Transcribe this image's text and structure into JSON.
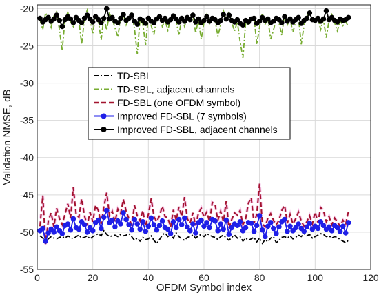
{
  "chart_data": {
    "type": "line",
    "xlabel": "OFDM Symbol index",
    "ylabel": "Validation NMSE, dB",
    "xlim": [
      0,
      120
    ],
    "ylim": [
      -55,
      -19.5
    ],
    "xticks": [
      0,
      20,
      40,
      60,
      80,
      100,
      120
    ],
    "yticks": [
      -55,
      -50,
      -45,
      -40,
      -35,
      -30,
      -25,
      -20
    ],
    "grid": true,
    "legend_position": "upper-center",
    "series": [
      {
        "name": "TD-SBL",
        "color": "#000000",
        "style": "dashdot",
        "x": [
          1,
          2,
          3,
          4,
          5,
          6,
          7,
          8,
          9,
          10,
          11,
          12,
          13,
          14,
          15,
          16,
          17,
          18,
          19,
          20,
          21,
          22,
          23,
          24,
          25,
          26,
          27,
          28,
          29,
          30,
          31,
          32,
          33,
          34,
          35,
          36,
          37,
          38,
          39,
          40,
          41,
          42,
          43,
          44,
          45,
          46,
          47,
          48,
          49,
          50,
          51,
          52,
          53,
          54,
          55,
          56,
          57,
          58,
          59,
          60,
          61,
          62,
          63,
          64,
          65,
          66,
          67,
          68,
          69,
          70,
          71,
          72,
          73,
          74,
          75,
          76,
          77,
          78,
          79,
          80,
          81,
          82,
          83,
          84,
          85,
          86,
          87,
          88,
          89,
          90,
          91,
          92,
          93,
          94,
          95,
          96,
          97,
          98,
          99,
          100,
          101,
          102,
          103,
          104,
          105,
          106,
          107,
          108,
          109,
          110,
          111,
          112
        ],
        "values": [
          -50.5,
          -50.8,
          -51.2,
          -50.9,
          -50.6,
          -50.8,
          -50.9,
          -50.7,
          -50.6,
          -50.8,
          -50.5,
          -50.7,
          -50.9,
          -50.6,
          -50.4,
          -50.8,
          -50.7,
          -50.5,
          -50.9,
          -50.6,
          -50.4,
          -50.2,
          -50.5,
          -49.8,
          -50.3,
          -50.6,
          -50.5,
          -50.4,
          -50.6,
          -50.3,
          -50.5,
          -50.4,
          -50.2,
          -50.6,
          -51.1,
          -50.8,
          -51.2,
          -50.7,
          -51.0,
          -50.9,
          -50.5,
          -51.1,
          -51.5,
          -51.0,
          -50.4,
          -50.1,
          -50.6,
          -50.3,
          -50.8,
          -50.1,
          -50.6,
          -50.9,
          -51.1,
          -50.7,
          -50.6,
          -50.4,
          -50.8,
          -50.5,
          -50.3,
          -50.6,
          -50.2,
          -50.4,
          -50.6,
          -50.7,
          -51.0,
          -50.6,
          -50.4,
          -50.8,
          -51.1,
          -50.7,
          -50.4,
          -50.8,
          -50.6,
          -51.2,
          -50.8,
          -51.1,
          -50.9,
          -50.7,
          -51.3,
          -50.8,
          -51.5,
          -51.0,
          -51.3,
          -50.8,
          -50.6,
          -51.4,
          -51.1,
          -50.7,
          -50.6,
          -50.8,
          -50.5,
          -50.9,
          -50.7,
          -50.4,
          -50.6,
          -50.2,
          -50.5,
          -50.3,
          -50.8,
          -50.6,
          -50.4,
          -50.2,
          -50.3,
          -50.6,
          -50.5,
          -50.8,
          -50.6,
          -50.7,
          -51.0,
          -51.2,
          -51.4,
          -51.1
        ]
      },
      {
        "name": "TD-SBL, adjacent channels",
        "color": "#77AC30",
        "style": "dashdot",
        "x": [
          1,
          2,
          3,
          4,
          5,
          6,
          7,
          8,
          9,
          10,
          11,
          12,
          13,
          14,
          15,
          16,
          17,
          18,
          19,
          20,
          21,
          22,
          23,
          24,
          25,
          26,
          27,
          28,
          29,
          30,
          31,
          32,
          33,
          34,
          35,
          36,
          37,
          38,
          39,
          40,
          41,
          42,
          43,
          44,
          45,
          46,
          47,
          48,
          49,
          50,
          51,
          52,
          53,
          54,
          55,
          56,
          57,
          58,
          59,
          60,
          61,
          62,
          63,
          64,
          65,
          66,
          67,
          68,
          69,
          70,
          71,
          72,
          73,
          74,
          75,
          76,
          77,
          78,
          79,
          80,
          81,
          82,
          83,
          84,
          85,
          86,
          87,
          88,
          89,
          90,
          91,
          92,
          93,
          94,
          95,
          96,
          97,
          98,
          99,
          100,
          101,
          102,
          103,
          104,
          105,
          106,
          107,
          108,
          109,
          110,
          111,
          112
        ],
        "values": [
          -21.5,
          -22.8,
          -20.6,
          -21.2,
          -22.5,
          -21.0,
          -20.4,
          -22.9,
          -25.6,
          -21.5,
          -20.5,
          -21.8,
          -22.4,
          -20.8,
          -21.6,
          -24.8,
          -21.3,
          -20.2,
          -21.5,
          -23.4,
          -20.8,
          -21.7,
          -24.2,
          -21.1,
          -22.9,
          -20.7,
          -21.4,
          -22.6,
          -23.8,
          -21.3,
          -20.7,
          -22.2,
          -21.4,
          -20.6,
          -22.7,
          -26.1,
          -21.4,
          -22.1,
          -24.9,
          -21.0,
          -22.3,
          -23.5,
          -21.2,
          -20.9,
          -22.4,
          -21.6,
          -22.9,
          -21.3,
          -20.8,
          -21.7,
          -23.6,
          -21.2,
          -22.4,
          -21.0,
          -21.8,
          -20.7,
          -23.3,
          -21.5,
          -24.1,
          -21.9,
          -20.8,
          -22.0,
          -21.2,
          -21.6,
          -23.7,
          -22.2,
          -20.3,
          -21.4,
          -20.5,
          -21.9,
          -23.0,
          -21.8,
          -24.4,
          -26.6,
          -21.9,
          -22.2,
          -21.3,
          -21.1,
          -24.8,
          -22.5,
          -20.6,
          -22.1,
          -21.5,
          -24.1,
          -22.9,
          -21.4,
          -21.9,
          -23.6,
          -20.7,
          -22.2,
          -21.4,
          -23.2,
          -21.7,
          -21.2,
          -24.8,
          -22.3,
          -21.0,
          -20.4,
          -21.6,
          -21.9,
          -21.3,
          -22.8,
          -21.5,
          -23.9,
          -21.6,
          -20.8,
          -21.9,
          -23.0,
          -21.6,
          -22.3,
          -21.8,
          -22.4
        ]
      },
      {
        "name": "FD-SBL (one OFDM symbol)",
        "color": "#A2142F",
        "style": "dashed",
        "x": [
          1,
          2,
          3,
          4,
          5,
          6,
          7,
          8,
          9,
          10,
          11,
          12,
          13,
          14,
          15,
          16,
          17,
          18,
          19,
          20,
          21,
          22,
          23,
          24,
          25,
          26,
          27,
          28,
          29,
          30,
          31,
          32,
          33,
          34,
          35,
          36,
          37,
          38,
          39,
          40,
          41,
          42,
          43,
          44,
          45,
          46,
          47,
          48,
          49,
          50,
          51,
          52,
          53,
          54,
          55,
          56,
          57,
          58,
          59,
          60,
          61,
          62,
          63,
          64,
          65,
          66,
          67,
          68,
          69,
          70,
          71,
          72,
          73,
          74,
          75,
          76,
          77,
          78,
          79,
          80,
          81,
          82,
          83,
          84,
          85,
          86,
          87,
          88,
          89,
          90,
          91,
          92,
          93,
          94,
          95,
          96,
          97,
          98,
          99,
          100,
          101,
          102,
          103,
          104,
          105,
          106,
          107,
          108,
          109,
          110,
          111,
          112
        ],
        "values": [
          -49.2,
          -45.1,
          -51.6,
          -48.5,
          -47.4,
          -49.3,
          -46.8,
          -48.2,
          -49.0,
          -47.6,
          -46.2,
          -48.1,
          -44.0,
          -47.6,
          -48.0,
          -45.5,
          -47.8,
          -49.1,
          -47.3,
          -48.6,
          -46.4,
          -47.1,
          -48.9,
          -46.6,
          -44.7,
          -47.8,
          -47.2,
          -48.6,
          -46.9,
          -47.5,
          -45.6,
          -47.2,
          -48.2,
          -49.0,
          -46.4,
          -47.8,
          -48.5,
          -47.1,
          -49.2,
          -47.6,
          -45.5,
          -47.9,
          -48.6,
          -47.8,
          -46.5,
          -47.9,
          -48.1,
          -49.3,
          -47.0,
          -48.4,
          -46.6,
          -47.9,
          -45.3,
          -48.2,
          -48.8,
          -47.4,
          -49.1,
          -47.5,
          -46.8,
          -48.0,
          -47.3,
          -48.6,
          -46.0,
          -46.3,
          -48.4,
          -47.2,
          -48.6,
          -45.8,
          -49.4,
          -48.3,
          -47.4,
          -47.7,
          -47.1,
          -49.0,
          -48.2,
          -46.1,
          -45.4,
          -48.8,
          -47.6,
          -43.5,
          -48.9,
          -49.3,
          -48.1,
          -47.5,
          -48.4,
          -49.0,
          -48.4,
          -47.1,
          -46.4,
          -48.8,
          -47.6,
          -48.9,
          -48.2,
          -47.3,
          -48.5,
          -49.2,
          -48.6,
          -47.8,
          -48.9,
          -47.3,
          -48.7,
          -46.7,
          -47.1,
          -48.6,
          -47.9,
          -49.0,
          -48.1,
          -48.6,
          -49.2,
          -48.4,
          -48.9,
          -47.2
        ]
      },
      {
        "name": "Improved FD-SBL (7 symbols)",
        "color": "#1F1FE8",
        "style": "solid-circle",
        "x": [
          1,
          2,
          3,
          4,
          5,
          6,
          7,
          8,
          9,
          10,
          11,
          12,
          13,
          14,
          15,
          16,
          17,
          18,
          19,
          20,
          21,
          22,
          23,
          24,
          25,
          26,
          27,
          28,
          29,
          30,
          31,
          32,
          33,
          34,
          35,
          36,
          37,
          38,
          39,
          40,
          41,
          42,
          43,
          44,
          45,
          46,
          47,
          48,
          49,
          50,
          51,
          52,
          53,
          54,
          55,
          56,
          57,
          58,
          59,
          60,
          61,
          62,
          63,
          64,
          65,
          66,
          67,
          68,
          69,
          70,
          71,
          72,
          73,
          74,
          75,
          76,
          77,
          78,
          79,
          80,
          81,
          82,
          83,
          84,
          85,
          86,
          87,
          88,
          89,
          90,
          91,
          92,
          93,
          94,
          95,
          96,
          97,
          98,
          99,
          100,
          101,
          102,
          103,
          104,
          105,
          106,
          107,
          108,
          109,
          110,
          111,
          112
        ],
        "values": [
          -49.8,
          -49.5,
          -51.2,
          -50.1,
          -49.6,
          -50.0,
          -49.3,
          -49.8,
          -50.2,
          -49.1,
          -48.9,
          -49.7,
          -48.2,
          -49.4,
          -49.6,
          -48.6,
          -49.0,
          -50.0,
          -49.4,
          -49.8,
          -48.7,
          -48.4,
          -49.5,
          -48.0,
          -47.1,
          -48.7,
          -48.4,
          -49.3,
          -48.5,
          -48.9,
          -47.4,
          -48.3,
          -49.0,
          -49.7,
          -48.3,
          -48.9,
          -49.6,
          -48.6,
          -49.9,
          -49.2,
          -48.1,
          -49.0,
          -49.7,
          -49.1,
          -48.5,
          -49.4,
          -49.6,
          -50.2,
          -48.6,
          -49.4,
          -48.3,
          -49.0,
          -48.1,
          -49.3,
          -49.8,
          -48.9,
          -50.1,
          -48.7,
          -48.4,
          -49.2,
          -48.7,
          -49.4,
          -48.3,
          -48.5,
          -49.8,
          -48.9,
          -49.6,
          -48.4,
          -50.3,
          -49.4,
          -48.9,
          -49.1,
          -48.6,
          -49.8,
          -49.4,
          -48.7,
          -48.8,
          -49.9,
          -49.1,
          -47.8,
          -49.7,
          -50.6,
          -49.2,
          -48.7,
          -49.5,
          -50.2,
          -49.3,
          -48.6,
          -48.3,
          -49.9,
          -49.2,
          -49.8,
          -49.4,
          -48.9,
          -49.5,
          -49.9,
          -49.3,
          -48.8,
          -49.6,
          -49.2,
          -49.5,
          -48.6,
          -49.1,
          -49.6,
          -49.3,
          -49.8,
          -49.1,
          -49.4,
          -49.9,
          -49.2,
          -50.1,
          -48.7
        ]
      },
      {
        "name": "Improved FD-SBL, adjacent channels",
        "color": "#000000",
        "style": "solid-circle",
        "x": [
          1,
          2,
          3,
          4,
          5,
          6,
          7,
          8,
          9,
          10,
          11,
          12,
          13,
          14,
          15,
          16,
          17,
          18,
          19,
          20,
          21,
          22,
          23,
          24,
          25,
          26,
          27,
          28,
          29,
          30,
          31,
          32,
          33,
          34,
          35,
          36,
          37,
          38,
          39,
          40,
          41,
          42,
          43,
          44,
          45,
          46,
          47,
          48,
          49,
          50,
          51,
          52,
          53,
          54,
          55,
          56,
          57,
          58,
          59,
          60,
          61,
          62,
          63,
          64,
          65,
          66,
          67,
          68,
          69,
          70,
          71,
          72,
          73,
          74,
          75,
          76,
          77,
          78,
          79,
          80,
          81,
          82,
          83,
          84,
          85,
          86,
          87,
          88,
          89,
          90,
          91,
          92,
          93,
          94,
          95,
          96,
          97,
          98,
          99,
          100,
          101,
          102,
          103,
          104,
          105,
          106,
          107,
          108,
          109,
          110,
          111,
          112
        ],
        "values": [
          -21.3,
          -21.8,
          -21.5,
          -21.2,
          -21.7,
          -21.4,
          -20.9,
          -21.6,
          -22.4,
          -21.5,
          -21.1,
          -21.4,
          -21.9,
          -21.2,
          -21.6,
          -21.9,
          -21.3,
          -20.9,
          -21.4,
          -21.8,
          -21.1,
          -21.5,
          -21.9,
          -21.3,
          -20.0,
          -21.4,
          -21.2,
          -21.7,
          -21.9,
          -21.3,
          -20.8,
          -21.6,
          -21.3,
          -20.9,
          -21.7,
          -22.1,
          -21.4,
          -21.6,
          -22.0,
          -21.3,
          -21.7,
          -21.9,
          -21.4,
          -21.1,
          -21.6,
          -21.3,
          -21.8,
          -21.5,
          -21.0,
          -21.4,
          -21.8,
          -21.3,
          -21.7,
          -21.2,
          -21.5,
          -20.9,
          -21.8,
          -21.4,
          -21.9,
          -21.6,
          -21.1,
          -21.7,
          -21.3,
          -21.5,
          -21.9,
          -21.6,
          -20.8,
          -21.4,
          -20.9,
          -21.6,
          -21.8,
          -21.5,
          -22.0,
          -22.2,
          -21.6,
          -21.8,
          -21.4,
          -21.3,
          -22.0,
          -21.7,
          -21.2,
          -21.6,
          -21.4,
          -21.9,
          -21.7,
          -21.3,
          -21.5,
          -21.9,
          -21.1,
          -21.7,
          -21.4,
          -21.8,
          -21.5,
          -21.2,
          -22.0,
          -21.6,
          -21.3,
          -20.6,
          -21.5,
          -21.6,
          -21.3,
          -21.7,
          -21.4,
          -20.3,
          -21.5,
          -21.2,
          -21.6,
          -21.8,
          -21.4,
          -21.6,
          -21.5,
          -21.2
        ]
      }
    ]
  }
}
